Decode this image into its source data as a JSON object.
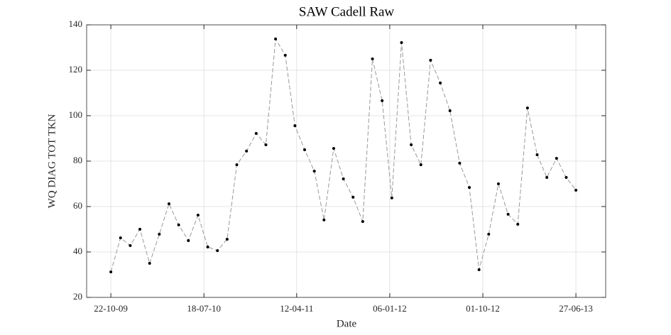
{
  "chart_data": {
    "type": "line",
    "title": "SAW Cadell Raw",
    "x_label": "Date",
    "y_label": "WQ DIAG TOT TKN",
    "x": [
      "2009-10-22",
      "2009-11-19",
      "2009-12-17",
      "2010-01-14",
      "2010-02-11",
      "2010-03-11",
      "2010-04-08",
      "2010-05-06",
      "2010-06-03",
      "2010-07-01",
      "2010-07-29",
      "2010-08-26",
      "2010-09-23",
      "2010-10-21",
      "2010-11-18",
      "2010-12-16",
      "2011-01-13",
      "2011-02-10",
      "2011-03-10",
      "2011-04-07",
      "2011-05-05",
      "2011-06-02",
      "2011-06-30",
      "2011-07-28",
      "2011-08-25",
      "2011-09-22",
      "2011-10-20",
      "2011-11-17",
      "2011-12-15",
      "2012-01-12",
      "2012-02-09",
      "2012-03-08",
      "2012-04-05",
      "2012-05-03",
      "2012-05-31",
      "2012-06-28",
      "2012-07-26",
      "2012-08-23",
      "2012-09-20",
      "2012-10-18",
      "2012-11-15",
      "2012-12-13",
      "2013-01-10",
      "2013-02-07",
      "2013-03-07",
      "2013-04-04",
      "2013-05-02",
      "2013-05-30",
      "2013-06-27"
    ],
    "series": [
      {
        "color": "#999999",
        "marker_color": "#000000",
        "values": [
          31.2,
          46.2,
          42.8,
          50,
          35,
          47.8,
          61.2,
          51.9,
          45,
          56.2,
          42.2,
          40.6,
          45.6,
          78.4,
          84.4,
          92.2,
          87.2,
          133.8,
          126.6,
          95.6,
          85,
          75.6,
          54.1,
          85.6,
          72.2,
          64.1,
          53.4,
          125,
          106.6,
          63.8,
          132.2,
          87.2,
          78.4,
          124.4,
          114.4,
          102.2,
          79.1,
          68.4,
          32.2,
          47.8,
          70,
          56.6,
          52.2,
          103.4,
          82.8,
          72.8,
          81.2,
          72.8,
          67.2
        ]
      }
    ],
    "xlim": [
      "2009-08-13",
      "2013-09-21"
    ],
    "xticks": [
      {
        "value": "2009-10-22",
        "label": "22-10-09"
      },
      {
        "value": "2010-07-18",
        "label": "18-07-10"
      },
      {
        "value": "2011-04-12",
        "label": "12-04-11"
      },
      {
        "value": "2012-01-06",
        "label": "06-01-12"
      },
      {
        "value": "2012-10-01",
        "label": "01-10-12"
      },
      {
        "value": "2013-06-27",
        "label": "27-06-13"
      }
    ],
    "ylim": [
      20,
      140
    ],
    "yticks": [
      20,
      40,
      60,
      80,
      100,
      120,
      140
    ],
    "grid": true
  }
}
